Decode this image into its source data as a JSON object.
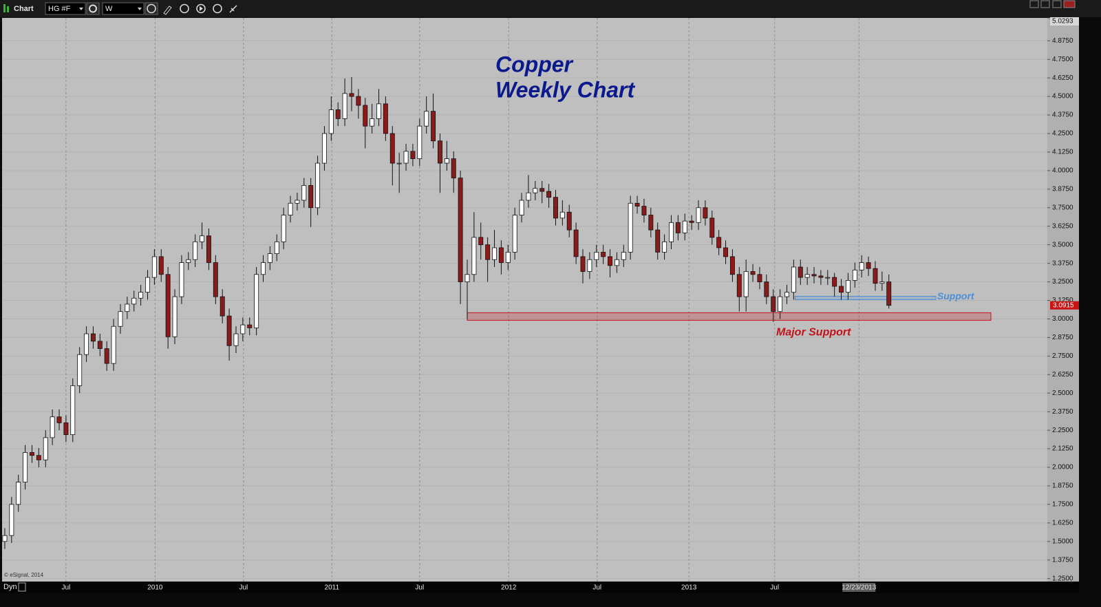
{
  "ui": {
    "window_title": "Chart",
    "symbol": "HG #F",
    "interval": "W",
    "mode": "Dyn",
    "copyright": "© eSignal, 2014"
  },
  "chart_data": {
    "type": "candlestick",
    "title": "Copper",
    "subtitle": "Weekly Chart",
    "up_color": "#ffffff",
    "down_color": "#8b1a1a",
    "grid": true,
    "xlim": [
      -0.4,
      153.3
    ],
    "ylim": [
      1.23,
      5.0293
    ],
    "xticks": [
      {
        "value": 9.0,
        "label": "Jul"
      },
      {
        "value": 22.1,
        "label": "2010"
      },
      {
        "value": 35.1,
        "label": "Jul"
      },
      {
        "value": 48.1,
        "label": "2011"
      },
      {
        "value": 61.0,
        "label": "Jul"
      },
      {
        "value": 74.1,
        "label": "2012"
      },
      {
        "value": 87.1,
        "label": "Jul"
      },
      {
        "value": 100.6,
        "label": "2013"
      },
      {
        "value": 113.2,
        "label": "Jul"
      },
      {
        "value": 125.6,
        "label": "12/23/2013"
      }
    ],
    "yticks": [
      5.0293,
      {
        "value": 4.875,
        "label": "4.8750"
      },
      {
        "value": 4.75,
        "label": "4.7500"
      },
      {
        "value": 4.625,
        "label": "4.6250"
      },
      {
        "value": 4.5,
        "label": "4.5000"
      },
      {
        "value": 4.375,
        "label": "4.3750"
      },
      {
        "value": 4.25,
        "label": "4.2500"
      },
      {
        "value": 4.125,
        "label": "4.1250"
      },
      {
        "value": 4.0,
        "label": "4.0000"
      },
      {
        "value": 3.875,
        "label": "3.8750"
      },
      {
        "value": 3.75,
        "label": "3.7500"
      },
      {
        "value": 3.625,
        "label": "3.6250"
      },
      {
        "value": 3.5,
        "label": "3.5000"
      },
      {
        "value": 3.375,
        "label": "3.3750"
      },
      {
        "value": 3.25,
        "label": "3.2500"
      },
      {
        "value": 3.125,
        "label": "3.1250"
      },
      {
        "value": 3.0,
        "label": "3.0000"
      },
      {
        "value": 2.875,
        "label": "2.8750"
      },
      {
        "value": 2.75,
        "label": "2.7500"
      },
      {
        "value": 2.625,
        "label": "2.6250"
      },
      {
        "value": 2.5,
        "label": "2.5000"
      },
      {
        "value": 2.375,
        "label": "2.3750"
      },
      {
        "value": 2.25,
        "label": "2.2500"
      },
      {
        "value": 2.125,
        "label": "2.1250"
      },
      {
        "value": 2.0,
        "label": "2.0000"
      },
      {
        "value": 1.875,
        "label": "1.8750"
      },
      {
        "value": 1.75,
        "label": "1.7500"
      },
      {
        "value": 1.625,
        "label": "1.6250"
      },
      {
        "value": 1.5,
        "label": "1.5000"
      },
      {
        "value": 1.375,
        "label": "1.3750"
      },
      {
        "value": 1.25,
        "label": "1.2500"
      }
    ],
    "open": [
      1.5,
      1.54,
      1.75,
      1.9,
      2.1,
      2.08,
      2.05,
      2.2,
      2.34,
      2.3,
      2.22,
      2.55,
      2.76,
      2.9,
      2.85,
      2.8,
      2.7,
      2.95,
      3.05,
      3.1,
      3.14,
      3.18,
      3.28,
      3.42,
      3.3,
      2.88,
      3.15,
      3.38,
      3.4,
      3.52,
      3.56,
      3.38,
      3.15,
      3.02,
      2.82,
      2.9,
      2.96,
      2.94,
      3.3,
      3.38,
      3.44,
      3.52,
      3.7,
      3.78,
      3.8,
      3.9,
      3.75,
      4.05,
      4.25,
      4.41,
      4.35,
      4.52,
      4.5,
      4.44,
      4.3,
      4.35,
      4.45,
      4.25,
      4.05,
      4.05,
      4.13,
      4.08,
      4.3,
      4.4,
      4.2,
      4.05,
      4.08,
      3.95,
      3.25,
      3.3,
      3.55,
      3.5,
      3.4,
      3.48,
      3.38,
      3.45,
      3.7,
      3.8,
      3.85,
      3.88,
      3.86,
      3.82,
      3.68,
      3.72,
      3.6,
      3.42,
      3.32,
      3.4,
      3.45,
      3.42,
      3.36,
      3.4,
      3.45,
      3.78,
      3.76,
      3.7,
      3.6,
      3.45,
      3.52,
      3.65,
      3.58,
      3.66,
      3.65,
      3.75,
      3.68,
      3.55,
      3.48,
      3.42,
      3.3,
      3.15,
      3.32,
      3.3,
      3.25,
      3.15,
      3.05,
      3.15,
      3.18,
      3.35,
      3.28,
      3.3,
      3.29,
      3.28,
      3.28,
      3.22,
      3.18,
      3.26,
      3.33,
      3.38,
      3.34,
      3.24,
      3.25
    ],
    "high": [
      1.59,
      1.8,
      1.95,
      2.15,
      2.15,
      2.13,
      2.25,
      2.39,
      2.39,
      2.35,
      2.6,
      2.81,
      2.95,
      2.95,
      2.9,
      2.85,
      3.0,
      3.1,
      3.15,
      3.19,
      3.23,
      3.33,
      3.47,
      3.47,
      3.35,
      3.2,
      3.43,
      3.45,
      3.57,
      3.65,
      3.61,
      3.43,
      3.2,
      3.07,
      2.95,
      3.01,
      3.01,
      3.35,
      3.43,
      3.49,
      3.57,
      3.75,
      3.83,
      3.85,
      3.95,
      3.95,
      4.1,
      4.3,
      4.5,
      4.46,
      4.62,
      4.63,
      4.55,
      4.49,
      4.45,
      4.55,
      4.5,
      4.3,
      4.12,
      4.18,
      4.18,
      4.35,
      4.5,
      4.52,
      4.25,
      4.2,
      4.13,
      4.0,
      3.4,
      3.72,
      3.65,
      3.55,
      3.6,
      3.53,
      3.5,
      3.75,
      3.85,
      3.97,
      3.93,
      3.93,
      3.91,
      3.87,
      3.8,
      3.77,
      3.65,
      3.47,
      3.45,
      3.5,
      3.5,
      3.47,
      3.45,
      3.5,
      3.83,
      3.83,
      3.81,
      3.75,
      3.65,
      3.57,
      3.7,
      3.7,
      3.71,
      3.7,
      3.8,
      3.8,
      3.73,
      3.6,
      3.53,
      3.47,
      3.35,
      3.4,
      3.37,
      3.35,
      3.3,
      3.2,
      3.2,
      3.23,
      3.4,
      3.4,
      3.35,
      3.35,
      3.33,
      3.33,
      3.31,
      3.27,
      3.31,
      3.38,
      3.43,
      3.42,
      3.39,
      3.32,
      3.3
    ],
    "low": [
      1.45,
      1.49,
      1.7,
      1.85,
      2.03,
      2.0,
      2.0,
      2.15,
      2.25,
      2.17,
      2.17,
      2.5,
      2.71,
      2.8,
      2.75,
      2.65,
      2.65,
      2.9,
      3.0,
      3.05,
      3.09,
      3.13,
      3.23,
      3.25,
      2.8,
      2.83,
      3.1,
      3.33,
      3.35,
      3.47,
      3.33,
      3.1,
      2.97,
      2.72,
      2.77,
      2.85,
      2.89,
      2.89,
      3.25,
      3.33,
      3.39,
      3.47,
      3.65,
      3.73,
      3.75,
      3.62,
      3.7,
      4.0,
      4.2,
      4.3,
      4.3,
      4.4,
      4.35,
      4.15,
      4.25,
      4.3,
      4.2,
      3.9,
      3.85,
      4.0,
      4.03,
      4.03,
      4.25,
      4.15,
      3.85,
      4.0,
      3.85,
      3.1,
      3.0,
      3.25,
      3.4,
      3.25,
      3.35,
      3.3,
      3.33,
      3.4,
      3.65,
      3.75,
      3.8,
      3.78,
      3.75,
      3.63,
      3.63,
      3.55,
      3.37,
      3.24,
      3.27,
      3.35,
      3.37,
      3.28,
      3.31,
      3.35,
      3.4,
      3.71,
      3.65,
      3.55,
      3.4,
      3.4,
      3.47,
      3.53,
      3.53,
      3.6,
      3.6,
      3.63,
      3.5,
      3.43,
      3.37,
      3.25,
      3.05,
      3.05,
      3.25,
      3.2,
      3.1,
      2.98,
      3.0,
      3.1,
      3.13,
      3.23,
      3.23,
      3.24,
      3.23,
      3.23,
      3.15,
      3.13,
      3.13,
      3.21,
      3.28,
      3.29,
      3.19,
      3.19,
      3.07
    ],
    "close": [
      1.54,
      1.75,
      1.9,
      2.1,
      2.08,
      2.05,
      2.2,
      2.34,
      2.3,
      2.22,
      2.55,
      2.76,
      2.9,
      2.85,
      2.8,
      2.7,
      2.95,
      3.05,
      3.1,
      3.14,
      3.18,
      3.28,
      3.42,
      3.3,
      2.88,
      3.15,
      3.38,
      3.4,
      3.52,
      3.56,
      3.38,
      3.15,
      3.02,
      2.82,
      2.9,
      2.96,
      2.94,
      3.3,
      3.38,
      3.44,
      3.52,
      3.7,
      3.78,
      3.8,
      3.9,
      3.75,
      4.05,
      4.25,
      4.41,
      4.35,
      4.52,
      4.5,
      4.44,
      4.3,
      4.35,
      4.45,
      4.25,
      4.05,
      4.05,
      4.13,
      4.08,
      4.3,
      4.4,
      4.2,
      4.05,
      4.08,
      3.95,
      3.25,
      3.3,
      3.55,
      3.5,
      3.4,
      3.48,
      3.38,
      3.45,
      3.7,
      3.8,
      3.85,
      3.88,
      3.86,
      3.82,
      3.68,
      3.72,
      3.6,
      3.42,
      3.32,
      3.4,
      3.45,
      3.42,
      3.36,
      3.4,
      3.45,
      3.78,
      3.76,
      3.7,
      3.6,
      3.45,
      3.52,
      3.65,
      3.58,
      3.66,
      3.65,
      3.75,
      3.68,
      3.55,
      3.48,
      3.42,
      3.3,
      3.15,
      3.32,
      3.3,
      3.25,
      3.15,
      3.05,
      3.15,
      3.18,
      3.35,
      3.28,
      3.3,
      3.29,
      3.28,
      3.28,
      3.22,
      3.18,
      3.26,
      3.33,
      3.38,
      3.34,
      3.24,
      3.25,
      3.0915
    ],
    "annotations": [
      {
        "text": "Support",
        "x": [
          116.2,
          136.9
        ],
        "y": [
          3.13,
          3.153
        ],
        "color": "#4a90d9"
      },
      {
        "text": "Major Support",
        "x": [
          68.0,
          145.0
        ],
        "y": [
          2.991,
          3.042
        ],
        "color": "#c0141a"
      }
    ]
  }
}
